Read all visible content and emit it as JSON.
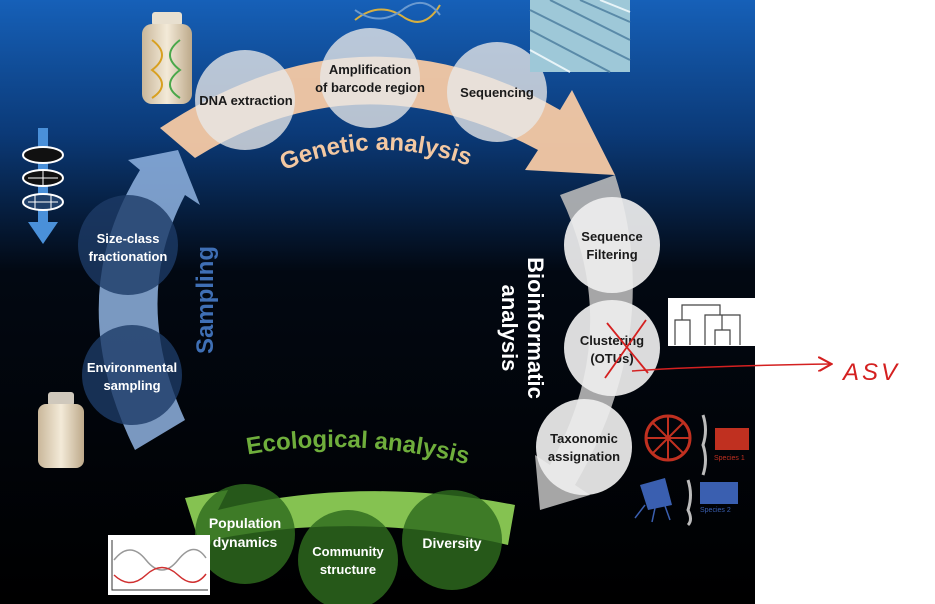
{
  "sections": {
    "genetic": {
      "title": "Genetic analysis",
      "color": "#f5c9a4",
      "title_color": "#f3c8a2",
      "steps": [
        {
          "line1": "DNA extraction",
          "line2": ""
        },
        {
          "line1": "Amplification",
          "line2": "of barcode region"
        },
        {
          "line1": "Sequencing",
          "line2": ""
        }
      ]
    },
    "bioinformatic": {
      "title_line1": "Bioinformatic",
      "title_line2": "analysis",
      "color": "#b8b8b8",
      "steps": [
        {
          "line1": "Sequence",
          "line2": "Filtering"
        },
        {
          "line1": "Clustering",
          "line2": "(OTUs)"
        },
        {
          "line1": "Taxonomic",
          "line2": "assignation"
        }
      ]
    },
    "ecological": {
      "title": "Ecological analysis",
      "color": "#8ccc55",
      "title_color": "#6fae3c",
      "steps": [
        {
          "line1": "Population",
          "line2": "dynamics"
        },
        {
          "line1": "Community",
          "line2": "structure"
        },
        {
          "line1": "Diversity",
          "line2": ""
        }
      ]
    },
    "sampling": {
      "title": "Sampling",
      "color": "#8fb3e0",
      "title_color": "#3f6fb5",
      "steps": [
        {
          "line1": "Size-class",
          "line2": "fractionation"
        },
        {
          "line1": "Environmental",
          "line2": "sampling"
        }
      ]
    }
  },
  "annotation": {
    "text": "ASV",
    "color": "#d42020"
  },
  "species_labels": [
    "Species 1",
    "Species 2"
  ]
}
